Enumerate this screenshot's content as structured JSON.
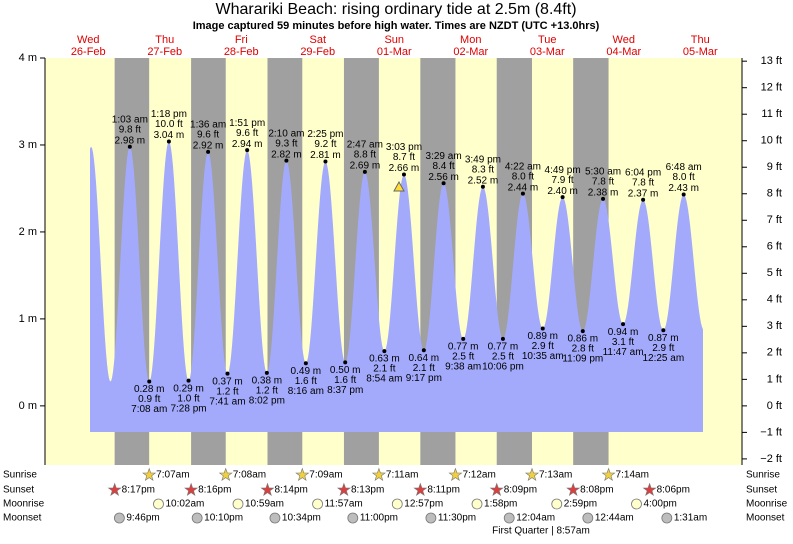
{
  "chart_data": {
    "type": "tide",
    "title": "Wharariki Beach: rising  ordinary tide at 2.5m (8.4ft)",
    "subtitle": "Image captured 59 minutes before high water. Times are NZDT (UTC +13.0hrs)",
    "ylim": [
      -0.68,
      4
    ],
    "yticks": [
      {
        "value": 4,
        "label": "4 m"
      },
      {
        "value": 3,
        "label": "3 m"
      },
      {
        "value": 2,
        "label": "2 m"
      },
      {
        "value": 1,
        "label": "1 m"
      },
      {
        "value": 0,
        "label": "0 m"
      }
    ],
    "y2lim": [
      -2.23,
      13.12
    ],
    "y2ticks": [
      {
        "value": 13,
        "label": "13 ft"
      },
      {
        "value": 12,
        "label": "12 ft"
      },
      {
        "value": 11,
        "label": "11 ft"
      },
      {
        "value": 10,
        "label": "10 ft"
      },
      {
        "value": 9,
        "label": "9 ft"
      },
      {
        "value": 8,
        "label": "8 ft"
      },
      {
        "value": 7,
        "label": "7 ft"
      },
      {
        "value": 6,
        "label": "6 ft"
      },
      {
        "value": 5,
        "label": "5 ft"
      },
      {
        "value": 4,
        "label": "4 ft"
      },
      {
        "value": 3,
        "label": "3 ft"
      },
      {
        "value": 2,
        "label": "2 ft"
      },
      {
        "value": 1,
        "label": "1 ft"
      },
      {
        "value": 0,
        "label": "0 ft"
      },
      {
        "value": -1,
        "label": "−1 ft"
      },
      {
        "value": -2,
        "label": "−2 ft"
      }
    ],
    "color": "#a3aafc",
    "row_labels": {
      "sunrise": "Sunrise",
      "sunset": "Sunset",
      "moonrise": "Moonrise",
      "moonset": "Moonset"
    },
    "moon_phase": "First Quarter | 8:57am",
    "days": [
      {
        "weekday": "Wed",
        "date": "26-Feb",
        "tides": [],
        "sunrise": null,
        "sunset": "8:17pm",
        "moonrise": null,
        "moonset": "9:46pm"
      },
      {
        "weekday": "Thu",
        "date": "27-Feb",
        "tides": [
          {
            "time": "1:03 am",
            "height": 2.98,
            "height_label": "2.98 m",
            "feet_label": "9.8 ft"
          },
          {
            "time": "7:08 am",
            "height": 0.28,
            "height_label": "0.28 m",
            "feet_label": "0.9 ft"
          },
          {
            "time": "1:18 pm",
            "height": 3.04,
            "height_label": "3.04 m",
            "feet_label": "10.0 ft"
          },
          {
            "time": "7:28 pm",
            "height": 0.29,
            "height_label": "0.29 m",
            "feet_label": "1.0 ft"
          }
        ],
        "sunrise": "7:07am",
        "sunset": "8:16pm",
        "moonrise": "10:02am",
        "moonset": "10:10pm"
      },
      {
        "weekday": "Fri",
        "date": "28-Feb",
        "tides": [
          {
            "time": "1:36 am",
            "height": 2.92,
            "height_label": "2.92 m",
            "feet_label": "9.6 ft"
          },
          {
            "time": "7:41 am",
            "height": 0.37,
            "height_label": "0.37 m",
            "feet_label": "1.2 ft"
          },
          {
            "time": "1:51 pm",
            "height": 2.94,
            "height_label": "2.94 m",
            "feet_label": "9.6 ft"
          },
          {
            "time": "8:02 pm",
            "height": 0.38,
            "height_label": "0.38 m",
            "feet_label": "1.2 ft"
          }
        ],
        "sunrise": "7:08am",
        "sunset": "8:14pm",
        "moonrise": "10:59am",
        "moonset": "10:34pm"
      },
      {
        "weekday": "Sat",
        "date": "29-Feb",
        "tides": [
          {
            "time": "2:10 am",
            "height": 2.82,
            "height_label": "2.82 m",
            "feet_label": "9.3 ft"
          },
          {
            "time": "8:16 am",
            "height": 0.49,
            "height_label": "0.49 m",
            "feet_label": "1.6 ft"
          },
          {
            "time": "2:25 pm",
            "height": 2.81,
            "height_label": "2.81 m",
            "feet_label": "9.2 ft"
          },
          {
            "time": "8:37 pm",
            "height": 0.5,
            "height_label": "0.50 m",
            "feet_label": "1.6 ft"
          }
        ],
        "sunrise": "7:09am",
        "sunset": "8:13pm",
        "moonrise": "11:57am",
        "moonset": "11:00pm"
      },
      {
        "weekday": "Sun",
        "date": "01-Mar",
        "tides": [
          {
            "time": "2:47 am",
            "height": 2.69,
            "height_label": "2.69 m",
            "feet_label": "8.8 ft"
          },
          {
            "time": "8:54 am",
            "height": 0.63,
            "height_label": "0.63 m",
            "feet_label": "2.1 ft"
          },
          {
            "time": "3:03 pm",
            "height": 2.66,
            "height_label": "2.66 m",
            "feet_label": "8.7 ft"
          },
          {
            "time": "9:17 pm",
            "height": 0.64,
            "height_label": "0.64 m",
            "feet_label": "2.1 ft"
          }
        ],
        "sunrise": "7:11am",
        "sunset": "8:11pm",
        "moonrise": "12:57pm",
        "moonset": "11:30pm"
      },
      {
        "weekday": "Mon",
        "date": "02-Mar",
        "tides": [
          {
            "time": "3:29 am",
            "height": 2.56,
            "height_label": "2.56 m",
            "feet_label": "8.4 ft"
          },
          {
            "time": "9:38 am",
            "height": 0.77,
            "height_label": "0.77 m",
            "feet_label": "2.5 ft"
          },
          {
            "time": "3:49 pm",
            "height": 2.52,
            "height_label": "2.52 m",
            "feet_label": "8.3 ft"
          },
          {
            "time": "10:06 pm",
            "height": 0.77,
            "height_label": "0.77 m",
            "feet_label": "2.5 ft"
          }
        ],
        "sunrise": "7:12am",
        "sunset": "8:09pm",
        "moonrise": "1:58pm",
        "moonset": null
      },
      {
        "weekday": "Tue",
        "date": "03-Mar",
        "tides": [
          {
            "time": "4:22 am",
            "height": 2.44,
            "height_label": "2.44 m",
            "feet_label": "8.0 ft"
          },
          {
            "time": "10:35 am",
            "height": 0.89,
            "height_label": "0.89 m",
            "feet_label": "2.9 ft"
          },
          {
            "time": "4:49 pm",
            "height": 2.4,
            "height_label": "2.40 m",
            "feet_label": "7.9 ft"
          },
          {
            "time": "11:09 pm",
            "height": 0.86,
            "height_label": "0.86 m",
            "feet_label": "2.8 ft"
          }
        ],
        "sunrise": "7:13am",
        "sunset": "8:08pm",
        "moonrise": "2:59pm",
        "moonset": "12:04am"
      },
      {
        "weekday": "Wed",
        "date": "04-Mar",
        "tides": [
          {
            "time": "5:30 am",
            "height": 2.38,
            "height_label": "2.38 m",
            "feet_label": "7.8 ft"
          },
          {
            "time": "11:47 am",
            "height": 0.94,
            "height_label": "0.94 m",
            "feet_label": "3.1 ft"
          },
          {
            "time": "6:04 pm",
            "height": 2.37,
            "height_label": "2.37 m",
            "feet_label": "7.8 ft"
          }
        ],
        "sunrise": "7:14am",
        "sunset": "8:06pm",
        "moonrise": "4:00pm",
        "moonset": "12:44am"
      },
      {
        "weekday": "Thu",
        "date": "05-Mar",
        "tides": [
          {
            "time": "12:25 am",
            "height": 0.87,
            "height_label": "0.87 m",
            "feet_label": "2.9 ft"
          },
          {
            "time": "6:48 am",
            "height": 2.43,
            "height_label": "2.43 m",
            "feet_label": "8.0 ft"
          }
        ],
        "sunrise": null,
        "sunset": null,
        "moonrise": null,
        "moonset": "1:31am"
      }
    ]
  }
}
